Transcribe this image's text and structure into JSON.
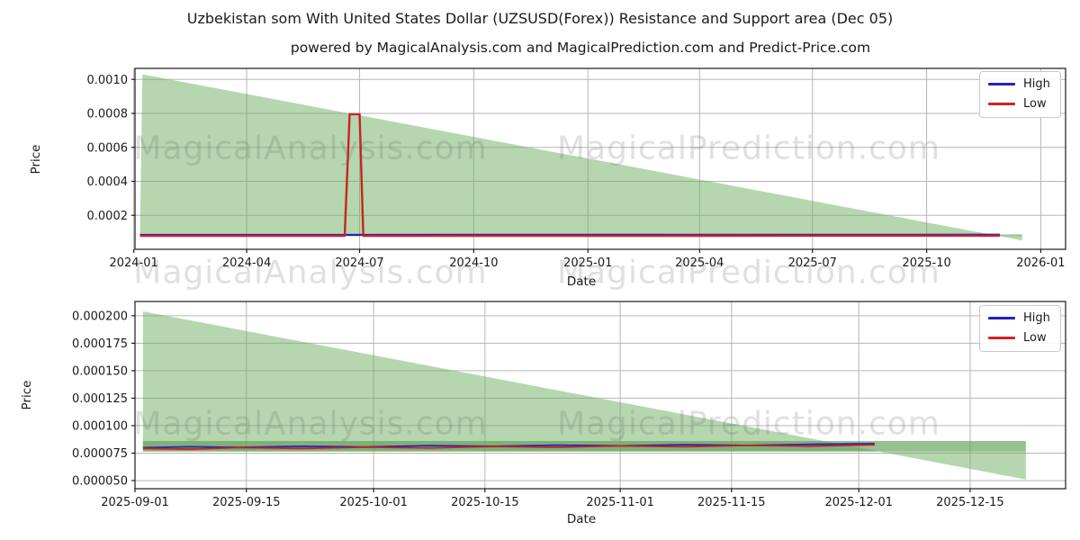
{
  "figure": {
    "title": "Uzbekistan som With United States Dollar (UZSUSD(Forex)) Resistance and Support area (Dec 05)",
    "subtitle": "powered by MagicalAnalysis.com and MagicalPrediction.com and Predict-Price.com"
  },
  "watermark": {
    "analysis": "MagicalAnalysis.com",
    "prediction": "MagicalPrediction.com"
  },
  "legend": {
    "high_label": "High",
    "low_label": "Low"
  },
  "colors": {
    "high": "#2323bf",
    "low": "#cc2127",
    "fill_green": "#6bad5d",
    "band_green": "#5d9e55",
    "grid": "#b6b6b6",
    "axis": "#1a1a1a",
    "watermark": "rgba(100,100,100,0.20)"
  },
  "chart_data": [
    {
      "type": "line",
      "name": "full-history",
      "xlabel": "Date",
      "ylabel": "Price",
      "legend_entries": [
        "High",
        "Low"
      ],
      "legend_position": "upper right",
      "grid": true,
      "xlim": [
        "2024-01-02",
        "2026-01-21"
      ],
      "ylim": [
        0,
        0.001065
      ],
      "xticks": {
        "dates": [
          "2024-01-01",
          "2024-04-01",
          "2024-07-01",
          "2024-10-01",
          "2025-01-01",
          "2025-04-01",
          "2025-07-01",
          "2025-10-01",
          "2026-01-01"
        ],
        "labels": [
          "2024-01",
          "2024-04",
          "2024-07",
          "2024-10",
          "2025-01",
          "2025-04",
          "2025-07",
          "2025-10",
          "2026-01"
        ]
      },
      "yticks": {
        "values": [
          0.0002,
          0.0004,
          0.0006,
          0.0008,
          0.001
        ],
        "labels": [
          "0.0002",
          "0.0004",
          "0.0006",
          "0.0008",
          "0.0010"
        ]
      },
      "series": {
        "resistance": [
          [
            "2024-01-08",
            0.00103
          ],
          [
            "2025-12-17",
            5.2e-05
          ]
        ],
        "support_low": [
          [
            "2024-01-06",
            7.75e-05
          ],
          [
            "2025-12-17",
            7.75e-05
          ]
        ],
        "support_high": [
          [
            "2024-01-06",
            8.75e-05
          ],
          [
            "2025-12-17",
            8.75e-05
          ]
        ],
        "high": [
          [
            "2024-01-06",
            8.5e-05
          ],
          [
            "2025-11-29",
            8.6e-05
          ]
        ],
        "low": [
          [
            "2024-01-06",
            7.9e-05
          ],
          [
            "2024-06-19",
            7.9e-05
          ],
          [
            "2024-06-23",
            0.000795
          ],
          [
            "2024-07-01",
            0.000795
          ],
          [
            "2024-07-04",
            7.9e-05
          ],
          [
            "2025-11-29",
            8e-05
          ]
        ]
      },
      "fills": [
        {
          "upper": "resistance",
          "lower": "support_low",
          "color": "#6bad5d",
          "opacity": 0.5
        },
        {
          "upper": "support_high",
          "lower": "support_low",
          "color": "#5d9e55",
          "opacity": 0.65
        }
      ],
      "lines": [
        {
          "series": "high",
          "label": "High",
          "color": "#2323bf",
          "width": 2.2
        },
        {
          "series": "low",
          "label": "Low",
          "color": "#cc2127",
          "width": 2.4
        }
      ]
    },
    {
      "type": "line",
      "name": "recent-zoom",
      "xlabel": "Date",
      "ylabel": "Price",
      "legend_entries": [
        "High",
        "Low"
      ],
      "legend_position": "upper right",
      "grid": true,
      "xlim": [
        "2025-09-01",
        "2025-12-27"
      ],
      "ylim": [
        4.26e-05,
        0.000213
      ],
      "xticks": {
        "dates": [
          "2025-09-01",
          "2025-09-15",
          "2025-10-01",
          "2025-10-15",
          "2025-11-01",
          "2025-11-15",
          "2025-12-01",
          "2025-12-15"
        ],
        "labels": [
          "2025-09-01",
          "2025-09-15",
          "2025-10-01",
          "2025-10-15",
          "2025-11-01",
          "2025-11-15",
          "2025-12-01",
          "2025-12-15"
        ]
      },
      "yticks": {
        "values": [
          5e-05,
          7.5e-05,
          0.0001,
          0.000125,
          0.00015,
          0.000175,
          0.0002
        ],
        "labels": [
          "0.000050",
          "0.000075",
          "0.000100",
          "0.000125",
          "0.000150",
          "0.000175",
          "0.000200"
        ]
      },
      "series": {
        "resistance": [
          [
            "2025-09-02",
            0.000204
          ],
          [
            "2025-12-22",
            5.1e-05
          ]
        ],
        "support_low": [
          [
            "2025-09-02",
            7.65e-05
          ],
          [
            "2025-12-22",
            7.65e-05
          ]
        ],
        "support_high": [
          [
            "2025-09-02",
            8.6e-05
          ],
          [
            "2025-12-22",
            8.6e-05
          ]
        ],
        "high": [
          [
            "2025-09-02",
            8e-05
          ],
          [
            "2025-09-08",
            8.08e-05
          ],
          [
            "2025-09-14",
            8.02e-05
          ],
          [
            "2025-09-22",
            8.12e-05
          ],
          [
            "2025-09-30",
            8.06e-05
          ],
          [
            "2025-10-08",
            8.18e-05
          ],
          [
            "2025-10-16",
            8.12e-05
          ],
          [
            "2025-10-24",
            8.22e-05
          ],
          [
            "2025-11-01",
            8.16e-05
          ],
          [
            "2025-11-09",
            8.26e-05
          ],
          [
            "2025-11-17",
            8.2e-05
          ],
          [
            "2025-11-25",
            8.3e-05
          ],
          [
            "2025-12-03",
            8.36e-05
          ]
        ],
        "low": [
          [
            "2025-09-02",
            7.92e-05
          ],
          [
            "2025-09-08",
            7.86e-05
          ],
          [
            "2025-09-14",
            8e-05
          ],
          [
            "2025-09-22",
            7.92e-05
          ],
          [
            "2025-09-30",
            8.04e-05
          ],
          [
            "2025-10-08",
            7.97e-05
          ],
          [
            "2025-10-16",
            8.1e-05
          ],
          [
            "2025-10-24",
            8.03e-05
          ],
          [
            "2025-11-01",
            8.15e-05
          ],
          [
            "2025-11-09",
            8.08e-05
          ],
          [
            "2025-11-17",
            8.2e-05
          ],
          [
            "2025-11-25",
            8.13e-05
          ],
          [
            "2025-12-03",
            8.26e-05
          ]
        ]
      },
      "fills": [
        {
          "upper": "resistance",
          "lower": "support_low",
          "color": "#6bad5d",
          "opacity": 0.5
        },
        {
          "upper": "support_high",
          "lower": "support_low",
          "color": "#5d9e55",
          "opacity": 0.65
        }
      ],
      "lines": [
        {
          "series": "high",
          "label": "High",
          "color": "#2323bf",
          "width": 1.8
        },
        {
          "series": "low",
          "label": "Low",
          "color": "#cc2127",
          "width": 1.8
        }
      ]
    }
  ]
}
